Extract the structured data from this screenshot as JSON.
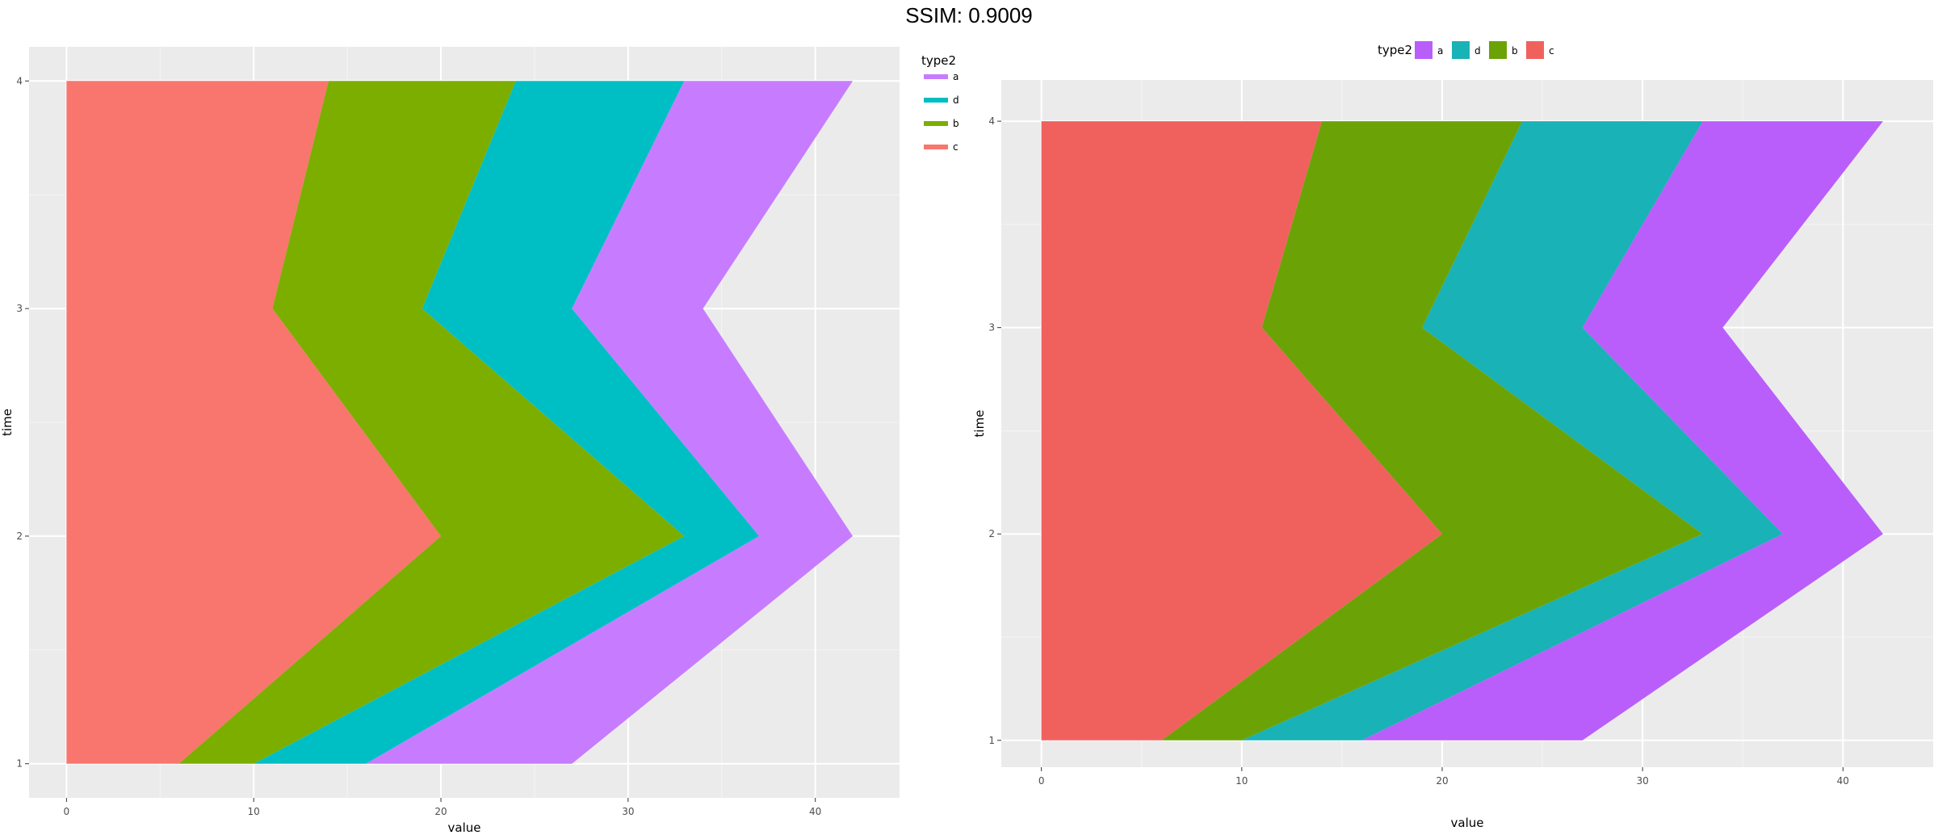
{
  "header": {
    "title": "SSIM: 0.9009"
  },
  "chart_data": [
    {
      "type": "area",
      "orientation": "horizontal-stacked",
      "xlabel": "value",
      "ylabel": "time",
      "xlim": [
        -2,
        44.5
      ],
      "ylim": [
        0.85,
        4.15
      ],
      "xticks": [
        0,
        10,
        20,
        30,
        40
      ],
      "yticks": [
        1,
        2,
        3,
        4
      ],
      "grid": true,
      "legend": {
        "title": "type2",
        "position": "right",
        "style": "line"
      },
      "y": [
        1,
        2,
        3,
        4
      ],
      "series": [
        {
          "name": "c",
          "values": [
            6,
            20,
            11,
            14
          ],
          "color": "#F8766D"
        },
        {
          "name": "b",
          "values": [
            4,
            13,
            8,
            10
          ],
          "color": "#7CAE00"
        },
        {
          "name": "d",
          "values": [
            6,
            4,
            8,
            9
          ],
          "color": "#00BFC4"
        },
        {
          "name": "a",
          "values": [
            11,
            5,
            7,
            9
          ],
          "color": "#C77CFF"
        }
      ]
    },
    {
      "type": "area",
      "orientation": "horizontal-stacked",
      "xlabel": "value",
      "ylabel": "time",
      "xlim": [
        -2,
        44.5
      ],
      "ylim": [
        0.87,
        4.2
      ],
      "xticks": [
        0,
        10,
        20,
        30,
        40
      ],
      "yticks": [
        1,
        2,
        3,
        4
      ],
      "grid": true,
      "legend": {
        "title": "type2",
        "position": "top",
        "style": "box"
      },
      "y": [
        1,
        2,
        3,
        4
      ],
      "series": [
        {
          "name": "c",
          "values": [
            6,
            20,
            11,
            14
          ],
          "color": "#F0615E"
        },
        {
          "name": "b",
          "values": [
            4,
            13,
            8,
            10
          ],
          "color": "#6BA306"
        },
        {
          "name": "d",
          "values": [
            6,
            4,
            8,
            9
          ],
          "color": "#19B2B6"
        },
        {
          "name": "a",
          "values": [
            11,
            5,
            7,
            9
          ],
          "color": "#B95EFB"
        }
      ]
    }
  ]
}
